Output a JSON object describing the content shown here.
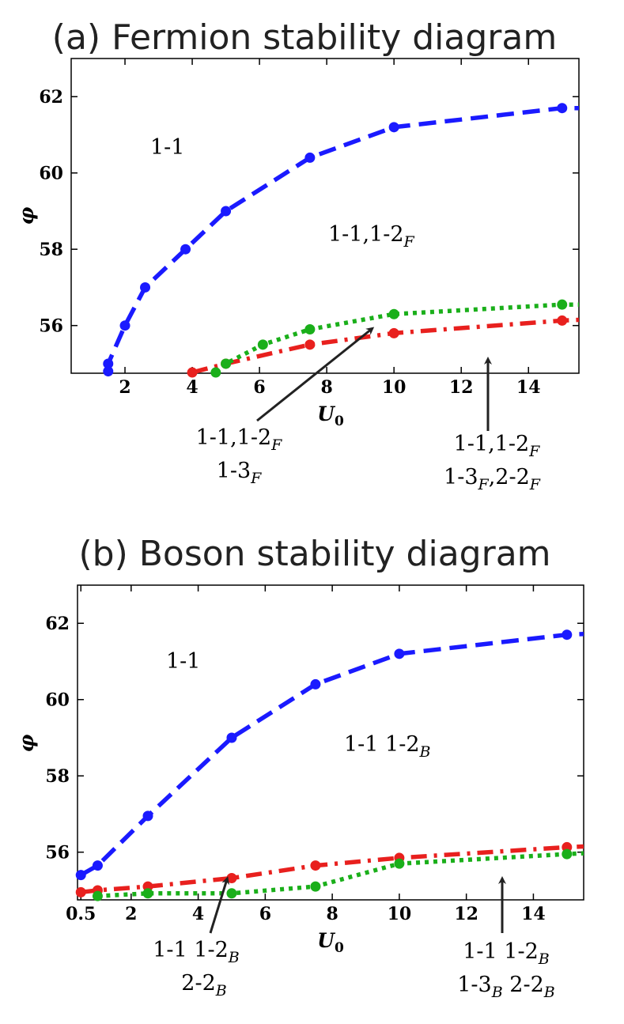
{
  "chart_data": [
    {
      "type": "line",
      "title": "(a) Fermion stability diagram",
      "xlabel": "U0",
      "ylabel": "φ",
      "xlim": [
        0.4,
        15.5
      ],
      "ylim": [
        54.75,
        63
      ],
      "x_ticks": [
        2,
        4,
        6,
        8,
        10,
        12,
        14
      ],
      "y_ticks": [
        56,
        58,
        60,
        62
      ],
      "grid": false,
      "series": [
        {
          "color": "#1a1aff",
          "dash": "dashed",
          "points": [
            [
              1.5,
              54.8
            ],
            [
              1.5,
              55.0
            ],
            [
              2.0,
              56.0
            ],
            [
              2.6,
              57.0
            ],
            [
              3.8,
              58.0
            ],
            [
              5.0,
              59.0
            ],
            [
              7.5,
              60.4
            ],
            [
              10.0,
              61.2
            ],
            [
              15.0,
              61.7
            ],
            [
              15.5,
              61.7
            ]
          ]
        },
        {
          "color": "#e8201e",
          "dash": "dashdot",
          "points": [
            [
              4.0,
              54.77
            ],
            [
              5.0,
              55.0
            ],
            [
              7.5,
              55.5
            ],
            [
              10.0,
              55.8
            ],
            [
              15.0,
              56.13
            ],
            [
              15.5,
              56.15
            ]
          ]
        },
        {
          "color": "#1aaf1a",
          "dash": "dotted",
          "points": [
            [
              4.7,
              54.77
            ],
            [
              5.0,
              55.0
            ],
            [
              6.1,
              55.5
            ],
            [
              7.5,
              55.9
            ],
            [
              10.0,
              56.3
            ],
            [
              15.0,
              56.55
            ],
            [
              15.5,
              56.55
            ]
          ]
        }
      ],
      "regions": [
        {
          "base": "1-1",
          "sub": ""
        },
        {
          "base": "1-1,1-2",
          "sub": "F"
        }
      ],
      "annotations": [
        {
          "lines": [
            [
              {
                "t": "1-1,1-2",
                "s": "F"
              }
            ],
            [
              {
                "t": "1-3",
                "s": "F"
              }
            ]
          ]
        },
        {
          "lines": [
            [
              {
                "t": "1-1,1-2",
                "s": "F"
              }
            ],
            [
              {
                "t": "1-3",
                "s": "F"
              },
              {
                "t": ",2-2",
                "s": "F"
              }
            ]
          ]
        }
      ]
    },
    {
      "type": "line",
      "title": "(b) Boson stability diagram",
      "xlabel": "U0",
      "ylabel": "φ",
      "xlim": [
        0.4,
        15.5
      ],
      "ylim": [
        54.75,
        63
      ],
      "x_ticks": [
        0.5,
        2,
        4,
        6,
        8,
        10,
        12,
        14
      ],
      "y_ticks": [
        56,
        58,
        60,
        62
      ],
      "grid": false,
      "series": [
        {
          "color": "#1a1aff",
          "dash": "dashed",
          "points": [
            [
              0.5,
              55.4
            ],
            [
              1.0,
              55.65
            ],
            [
              2.5,
              56.95
            ],
            [
              5.0,
              59.0
            ],
            [
              7.5,
              60.4
            ],
            [
              10.0,
              61.2
            ],
            [
              15.0,
              61.7
            ],
            [
              15.5,
              61.72
            ]
          ]
        },
        {
          "color": "#e8201e",
          "dash": "dashdot",
          "points": [
            [
              0.5,
              54.95
            ],
            [
              1.0,
              55.0
            ],
            [
              2.5,
              55.1
            ],
            [
              5.0,
              55.32
            ],
            [
              7.5,
              55.65
            ],
            [
              10.0,
              55.85
            ],
            [
              15.0,
              56.13
            ],
            [
              15.5,
              56.15
            ]
          ]
        },
        {
          "color": "#1aaf1a",
          "dash": "dotted",
          "points": [
            [
              1.0,
              54.85
            ],
            [
              2.5,
              54.92
            ],
            [
              5.0,
              54.92
            ],
            [
              7.5,
              55.1
            ],
            [
              10.0,
              55.7
            ],
            [
              15.0,
              55.95
            ],
            [
              15.5,
              55.97
            ]
          ]
        }
      ],
      "regions": [
        {
          "base": "1-1",
          "sub": ""
        },
        {
          "base": "1-1 1-2",
          "sub": "B"
        }
      ],
      "annotations": [
        {
          "lines": [
            [
              {
                "t": "1-1 1-2",
                "s": "B"
              }
            ],
            [
              {
                "t": "2-2",
                "s": "B"
              }
            ]
          ]
        },
        {
          "lines": [
            [
              {
                "t": "1-1 1-2",
                "s": "B"
              }
            ],
            [
              {
                "t": "1-3",
                "s": "B"
              },
              {
                "t": " 2-2",
                "s": "B"
              }
            ]
          ]
        }
      ]
    }
  ]
}
